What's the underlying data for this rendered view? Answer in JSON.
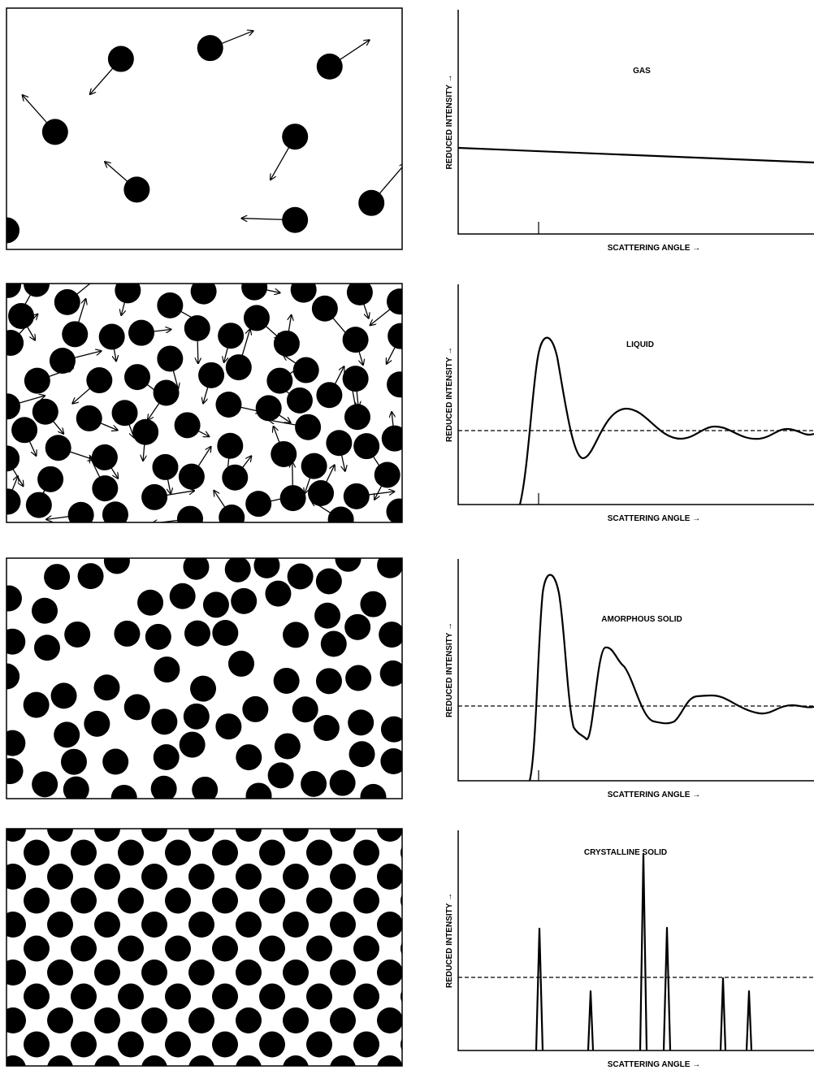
{
  "panels": [
    {
      "label": "GAS",
      "y_axis_label": "REDUCED INTENSITY →",
      "x_axis_label": "SCATTERING ANGLE →"
    },
    {
      "label": "LIQUID",
      "y_axis_label": "REDUCED INTENSITY →",
      "x_axis_label": "SCATTERING ANGLE →"
    },
    {
      "label": "AMORPHOUS SOLID",
      "y_axis_label": "REDUCED INTENSITY →",
      "x_axis_label": "SCATTERING ANGLE →"
    },
    {
      "label": "CRYSTALLINE SOLID",
      "y_axis_label": "REDUCED INTENSITY →",
      "x_axis_label": "SCATTERING ANGLE →"
    }
  ]
}
